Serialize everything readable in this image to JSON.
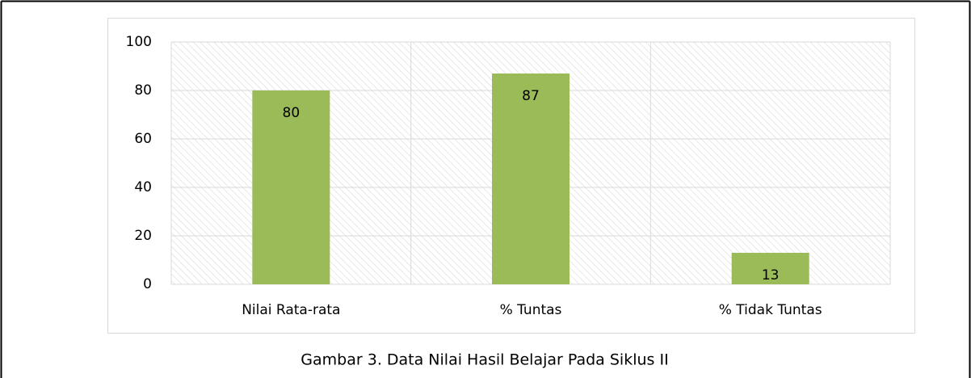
{
  "chart_data": {
    "type": "bar",
    "categories": [
      "Nilai Rata-rata",
      "% Tuntas",
      "% Tidak Tuntas"
    ],
    "values": [
      80,
      87,
      13
    ],
    "color": "#9bbb59",
    "ylim": [
      0,
      100
    ],
    "yticks": [
      0,
      20,
      40,
      60,
      80,
      100
    ],
    "grid": true,
    "caption": "Gambar 3. Data Nilai Hasil Belajar Pada Siklus II"
  }
}
